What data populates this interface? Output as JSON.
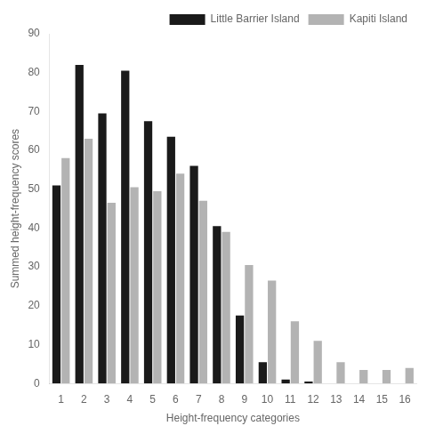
{
  "chart_data": {
    "type": "bar",
    "xlabel": "Height-frequency categories",
    "ylabel": "Summed height-frequency scores",
    "categories": [
      1,
      2,
      3,
      4,
      5,
      6,
      7,
      8,
      9,
      10,
      11,
      12,
      13,
      14,
      15,
      16
    ],
    "series": [
      {
        "name": "Little Barrier Island",
        "color": "#1a1a1a",
        "values": [
          51,
          82,
          69.5,
          80.5,
          67.5,
          63.5,
          56,
          40.5,
          17.5,
          5.5,
          1,
          0.5,
          0,
          0,
          0,
          0
        ]
      },
      {
        "name": "Kapiti Island",
        "color": "#b3b3b3",
        "values": [
          58,
          63,
          46.5,
          50.5,
          49.5,
          54,
          47,
          39,
          30.5,
          26.5,
          16,
          11,
          5.5,
          3.5,
          3.5,
          4
        ]
      }
    ],
    "ylim": [
      0,
      90
    ],
    "yticks": [
      0,
      10,
      20,
      30,
      40,
      50,
      60,
      70,
      80,
      90
    ],
    "grid": false,
    "legend": "upper right"
  }
}
